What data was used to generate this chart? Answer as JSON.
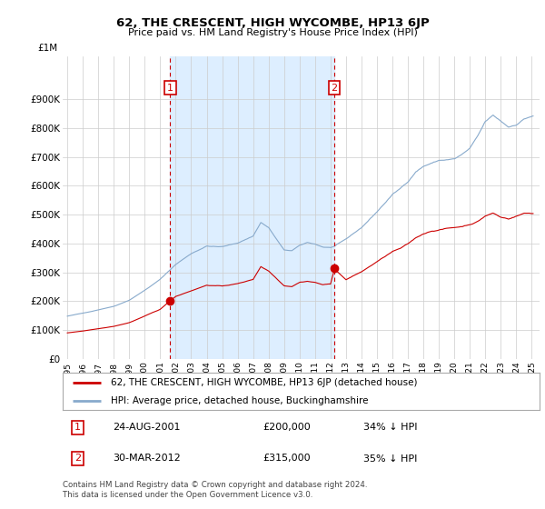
{
  "title": "62, THE CRESCENT, HIGH WYCOMBE, HP13 6JP",
  "subtitle": "Price paid vs. HM Land Registry's House Price Index (HPI)",
  "legend_label_red": "62, THE CRESCENT, HIGH WYCOMBE, HP13 6JP (detached house)",
  "legend_label_blue": "HPI: Average price, detached house, Buckinghamshire",
  "annotation1_label": "1",
  "annotation1_date": "24-AUG-2001",
  "annotation1_price": "£200,000",
  "annotation1_hpi": "34% ↓ HPI",
  "annotation1_year": 2001.65,
  "annotation1_value": 200000,
  "annotation2_label": "2",
  "annotation2_date": "30-MAR-2012",
  "annotation2_price": "£315,000",
  "annotation2_hpi": "35% ↓ HPI",
  "annotation2_year": 2012.25,
  "annotation2_value": 315000,
  "footnote": "Contains HM Land Registry data © Crown copyright and database right 2024.\nThis data is licensed under the Open Government Licence v3.0.",
  "ylim": [
    0,
    1000000
  ],
  "xlim_start": 1994.7,
  "xlim_end": 2025.5,
  "red_color": "#cc0000",
  "blue_color": "#88aacc",
  "shade_color": "#ddeeff",
  "background_color": "#ffffff",
  "grid_color": "#cccccc",
  "yticks": [
    0,
    100000,
    200000,
    300000,
    400000,
    500000,
    600000,
    700000,
    800000,
    900000
  ],
  "ytick_labels": [
    "£0",
    "£100K",
    "£200K",
    "£300K",
    "£400K",
    "£500K",
    "£600K",
    "£700K",
    "£800K",
    "£900K"
  ],
  "xtick_years": [
    1995,
    1996,
    1997,
    1998,
    1999,
    2000,
    2001,
    2002,
    2003,
    2004,
    2005,
    2006,
    2007,
    2008,
    2009,
    2010,
    2011,
    2012,
    2013,
    2014,
    2015,
    2016,
    2017,
    2018,
    2019,
    2020,
    2021,
    2022,
    2023,
    2024,
    2025
  ]
}
